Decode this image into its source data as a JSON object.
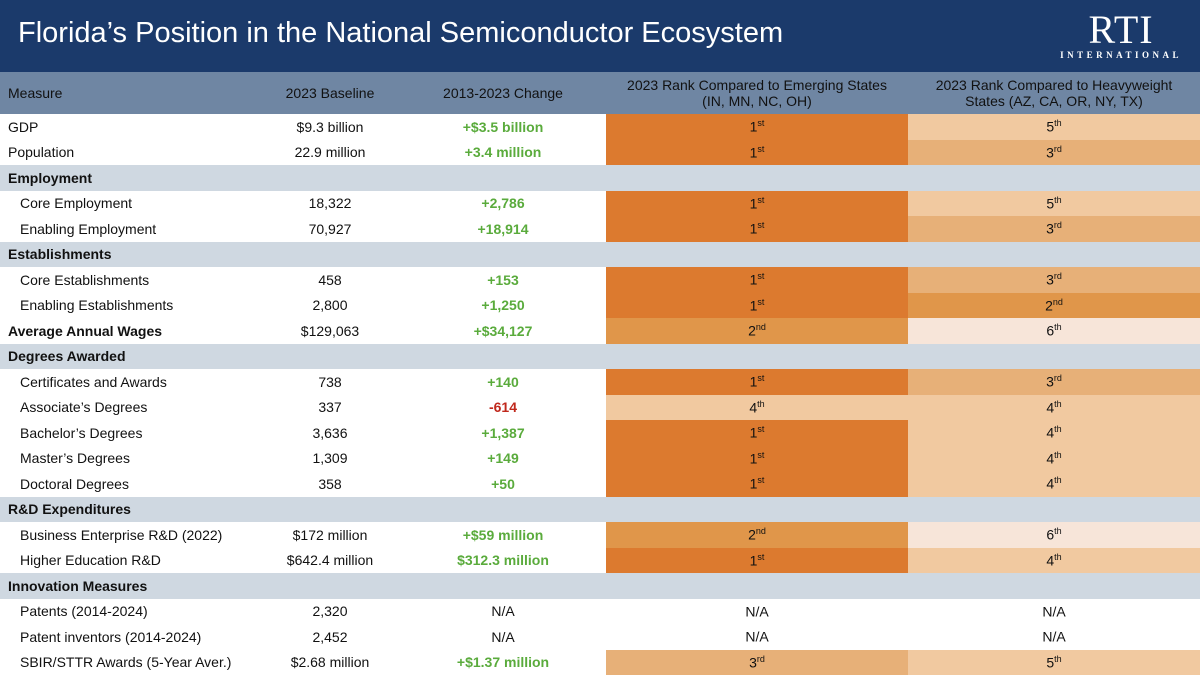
{
  "title": "Florida’s Position in the National Semiconductor Ecosystem",
  "logo": {
    "name": "RTI",
    "sub": "INTERNATIONAL"
  },
  "headers": [
    "Measure",
    "2023 Baseline",
    "2013-2023 Change",
    "2023 Rank Compared to Emerging States (IN, MN, NC, OH)",
    "2023 Rank Compared to Heavyweight States (AZ, CA, OR, NY, TX)"
  ],
  "rank_colors": {
    "1": "#dc7a2f",
    "2": "#e0964a",
    "3": "#e7b078",
    "4": "#f1c9a0",
    "5": "#f1c9a0",
    "6": "#f7e5d9",
    "N/A": "#ffffff"
  },
  "change_colors": {
    "positive": "#5aab3c",
    "negative": "#c0281c"
  },
  "rows": [
    {
      "measure": "GDP",
      "baseline": "$9.3 billion",
      "change": "+$3.5 billion",
      "r1": "1",
      "s1": "st",
      "r2": "5",
      "s2": "th"
    },
    {
      "measure": "Population",
      "baseline": "22.9 million",
      "change": "+3.4 million",
      "r1": "1",
      "s1": "st",
      "r2": "3",
      "s2": "rd"
    },
    {
      "section": "Employment"
    },
    {
      "measure": "Core Employment",
      "indent": true,
      "baseline": "18,322",
      "change": "+2,786",
      "r1": "1",
      "s1": "st",
      "r2": "5",
      "s2": "th"
    },
    {
      "measure": "Enabling Employment",
      "indent": true,
      "baseline": "70,927",
      "change": "+18,914",
      "r1": "1",
      "s1": "st",
      "r2": "3",
      "s2": "rd"
    },
    {
      "section": "Establishments"
    },
    {
      "measure": "Core Establishments",
      "indent": true,
      "baseline": "458",
      "change": "+153",
      "r1": "1",
      "s1": "st",
      "r2": "3",
      "s2": "rd"
    },
    {
      "measure": "Enabling Establishments",
      "indent": true,
      "baseline": "2,800",
      "change": "+1,250",
      "r1": "1",
      "s1": "st",
      "r2": "2",
      "s2": "nd"
    },
    {
      "measure": "Average Annual Wages",
      "bold": true,
      "baseline": "$129,063",
      "change": "+$34,127",
      "r1": "2",
      "s1": "nd",
      "r2": "6",
      "s2": "th"
    },
    {
      "section": "Degrees Awarded"
    },
    {
      "measure": "Certificates and Awards",
      "indent": true,
      "baseline": "738",
      "change": "+140",
      "r1": "1",
      "s1": "st",
      "r2": "3",
      "s2": "rd"
    },
    {
      "measure": "Associate’s Degrees",
      "indent": true,
      "baseline": "337",
      "change": "-614",
      "r1": "4",
      "s1": "th",
      "r2": "4",
      "s2": "th"
    },
    {
      "measure": "Bachelor’s Degrees",
      "indent": true,
      "baseline": "3,636",
      "change": "+1,387",
      "r1": "1",
      "s1": "st",
      "r2": "4",
      "s2": "th"
    },
    {
      "measure": "Master’s Degrees",
      "indent": true,
      "baseline": "1,309",
      "change": "+149",
      "r1": "1",
      "s1": "st",
      "r2": "4",
      "s2": "th"
    },
    {
      "measure": "Doctoral Degrees",
      "indent": true,
      "baseline": "358",
      "change": "+50",
      "r1": "1",
      "s1": "st",
      "r2": "4",
      "s2": "th"
    },
    {
      "section": "R&D Expenditures"
    },
    {
      "measure": "Business Enterprise R&D (2022)",
      "indent": true,
      "baseline": "$172 million",
      "change": "+$59 million",
      "r1": "2",
      "s1": "nd",
      "r2": "6",
      "s2": "th"
    },
    {
      "measure": "Higher Education R&D",
      "indent": true,
      "baseline": "$642.4 million",
      "change": "$312.3 million",
      "r1": "1",
      "s1": "st",
      "r2": "4",
      "s2": "th"
    },
    {
      "section": "Innovation Measures"
    },
    {
      "measure": "Patents (2014-2024)",
      "indent": true,
      "baseline": "2,320",
      "change": "N/A",
      "r1": "N/A",
      "s1": "",
      "r2": "N/A",
      "s2": ""
    },
    {
      "measure": "Patent inventors (2014-2024)",
      "indent": true,
      "baseline": "2,452",
      "change": "N/A",
      "r1": "N/A",
      "s1": "",
      "r2": "N/A",
      "s2": ""
    },
    {
      "measure": "SBIR/STTR Awards (5-Year Aver.)",
      "indent": true,
      "baseline": "$2.68 million",
      "change": "+$1.37 million",
      "r1": "3",
      "s1": "rd",
      "r2": "5",
      "s2": "th"
    }
  ]
}
